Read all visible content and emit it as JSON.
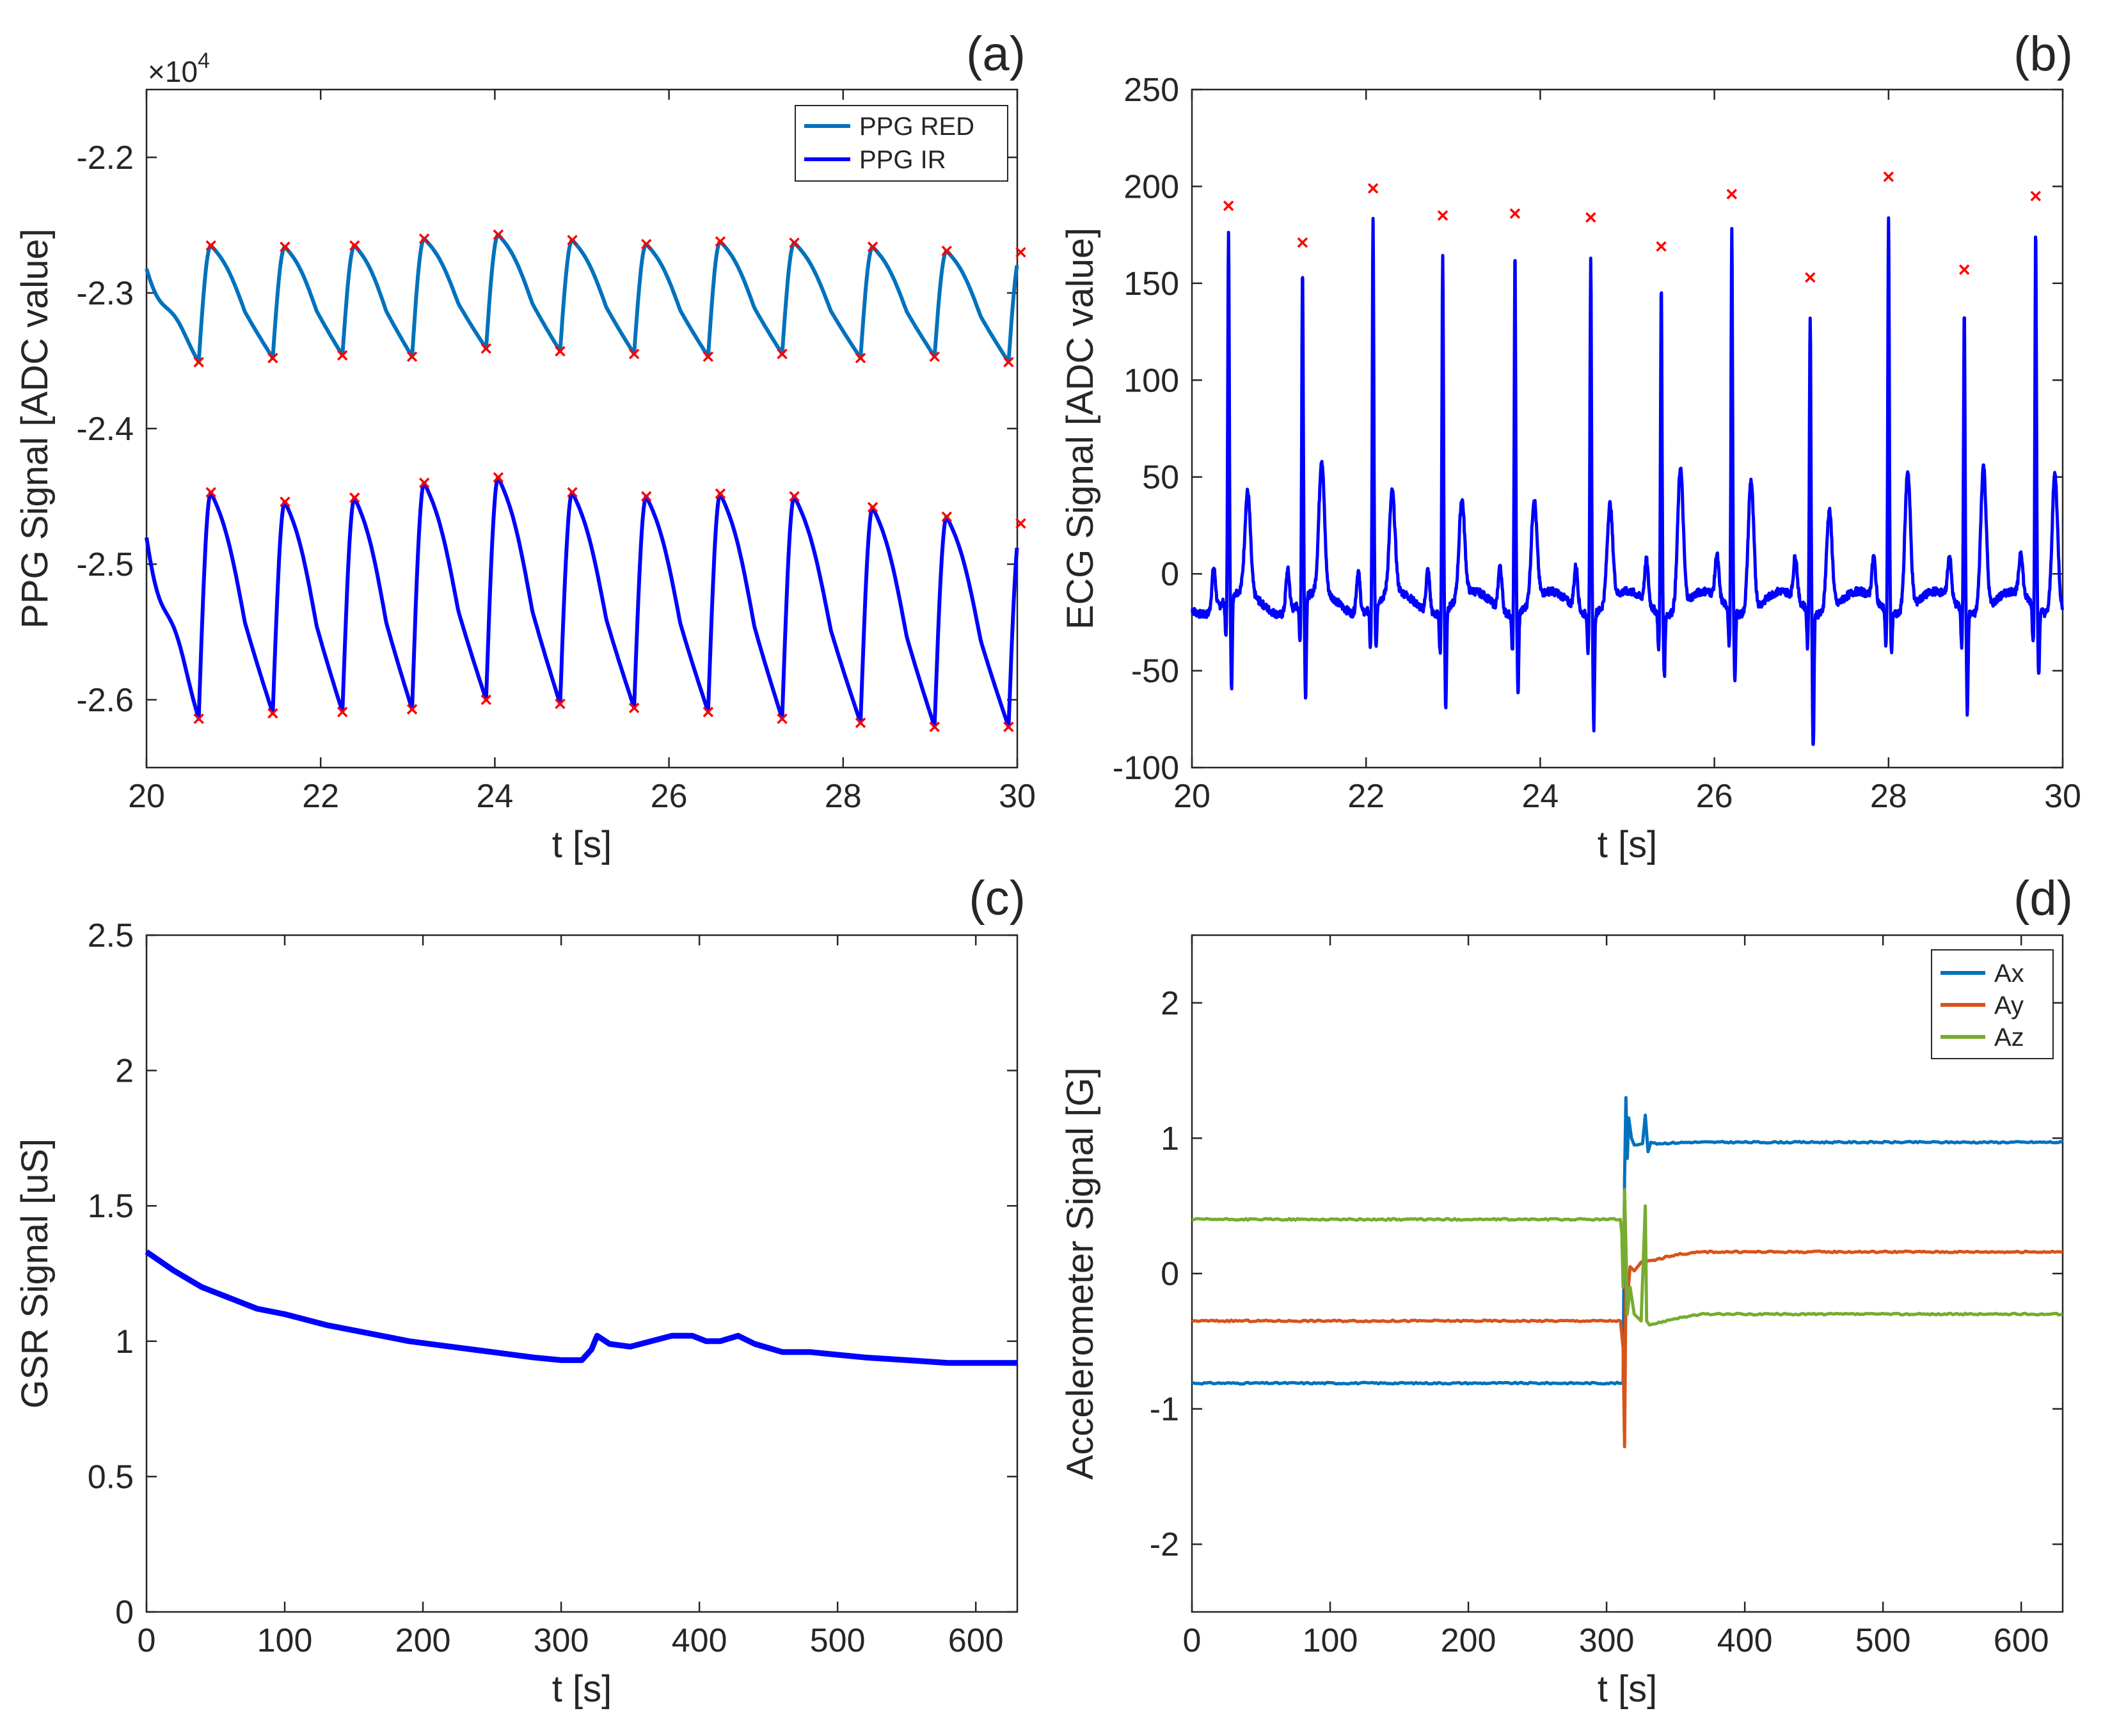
{
  "chart_data": [
    {
      "panel": "(a)",
      "type": "line",
      "title": "",
      "xlabel": "t [s]",
      "ylabel": "PPG Signal [ADC value]",
      "xlim": [
        20,
        30
      ],
      "ylim": [
        -26500,
        -21500
      ],
      "xticks": [
        "20",
        "22",
        "24",
        "26",
        "28",
        "30"
      ],
      "yticks": [
        "-2.2",
        "-2.3",
        "-2.4",
        "-2.5",
        "-2.6"
      ],
      "exponent_label": "×10",
      "exponent_power": "4",
      "legend": [
        "PPG RED",
        "PPG IR"
      ],
      "legend_position": "top-right",
      "series": [
        {
          "name": "PPG RED",
          "color": "#0072BD",
          "base": -23500,
          "amplitude": 870
        },
        {
          "name": "PPG IR",
          "color": "#0000FF",
          "base": -26130,
          "amplitude": 1640
        }
      ],
      "beat_onsets_s": [
        20.6,
        21.45,
        22.25,
        23.05,
        23.9,
        24.75,
        25.6,
        26.45,
        27.3,
        28.2,
        29.05,
        29.9
      ],
      "red_peaks": [
        -22650,
        -22660,
        -22650,
        -22600,
        -22570,
        -22610,
        -22640,
        -22620,
        -22630,
        -22660,
        -22690,
        -22700
      ],
      "red_troughs": [
        -23510,
        -23480,
        -23460,
        -23470,
        -23410,
        -23430,
        -23450,
        -23470,
        -23450,
        -23480,
        -23470,
        -23510
      ],
      "ir_peaks": [
        -24470,
        -24540,
        -24510,
        -24400,
        -24360,
        -24470,
        -24500,
        -24480,
        -24500,
        -24580,
        -24650,
        -24700
      ],
      "ir_troughs": [
        -26140,
        -26100,
        -26090,
        -26070,
        -26000,
        -26030,
        -26060,
        -26090,
        -26140,
        -26170,
        -26200,
        -26200
      ],
      "peak_marker_color": "#FF0000"
    },
    {
      "panel": "(b)",
      "type": "line",
      "xlabel": "t [s]",
      "ylabel": "ECG Signal [ADC value]",
      "xlim": [
        20,
        30
      ],
      "ylim": [
        -100,
        250
      ],
      "xticks": [
        "20",
        "22",
        "24",
        "26",
        "28",
        "30"
      ],
      "yticks": [
        "250",
        "200",
        "150",
        "100",
        "50",
        "0",
        "-50",
        "-100"
      ],
      "series": [
        {
          "name": "ECG",
          "color": "#0000FF"
        }
      ],
      "r_peak_times": [
        20.42,
        21.27,
        22.08,
        22.88,
        23.71,
        24.58,
        25.39,
        26.2,
        27.1,
        28.0,
        28.87,
        29.69
      ],
      "r_peak_values": [
        190,
        171,
        199,
        185,
        186,
        184,
        169,
        196,
        153,
        205,
        157,
        195
      ],
      "s_wave_values": [
        -57,
        -62,
        -32,
        -61,
        -52,
        -69,
        -42,
        -45,
        -85,
        -30,
        -62,
        -45
      ],
      "t_wave_values": [
        42,
        58,
        42,
        40,
        42,
        40,
        62,
        58,
        42,
        62,
        65,
        62
      ],
      "peak_marker_color": "#FF0000"
    },
    {
      "panel": "(c)",
      "type": "line",
      "xlabel": "t [s]",
      "ylabel": "GSR Signal [uS]",
      "xlim": [
        0,
        630
      ],
      "ylim": [
        0,
        2.5
      ],
      "xticks": [
        "0",
        "100",
        "200",
        "300",
        "400",
        "500",
        "600"
      ],
      "yticks": [
        "2.5",
        "2",
        "1.5",
        "1",
        "0.5",
        "0"
      ],
      "series": [
        {
          "name": "GSR",
          "color": "#0000FF",
          "x": [
            0,
            20,
            40,
            60,
            80,
            100,
            130,
            160,
            190,
            220,
            250,
            280,
            300,
            315,
            322,
            326,
            335,
            350,
            365,
            380,
            395,
            405,
            415,
            428,
            440,
            460,
            480,
            500,
            520,
            550,
            580,
            600,
            630
          ],
          "y": [
            1.33,
            1.26,
            1.2,
            1.16,
            1.12,
            1.1,
            1.06,
            1.03,
            1.0,
            0.98,
            0.96,
            0.94,
            0.93,
            0.93,
            0.97,
            1.02,
            0.99,
            0.98,
            1.0,
            1.02,
            1.02,
            1.0,
            1.0,
            1.02,
            0.99,
            0.96,
            0.96,
            0.95,
            0.94,
            0.93,
            0.92,
            0.92,
            0.92
          ]
        }
      ]
    },
    {
      "panel": "(d)",
      "type": "line",
      "xlabel": "t [s]",
      "ylabel": "Accelerometer Signal [G]",
      "xlim": [
        0,
        630
      ],
      "ylim": [
        -2.5,
        2.5
      ],
      "xticks": [
        "0",
        "100",
        "200",
        "300",
        "400",
        "500",
        "600"
      ],
      "yticks": [
        "2",
        "1",
        "0",
        "-1",
        "-2"
      ],
      "legend": [
        "Ax",
        "Ay",
        "Az"
      ],
      "legend_position": "top-right",
      "series": [
        {
          "name": "Ax",
          "color": "#0072BD",
          "x": [
            0,
            312,
            313,
            314,
            315,
            316,
            318,
            320,
            322,
            326,
            328,
            330,
            332,
            335,
            360,
            420,
            630
          ],
          "y": [
            -0.81,
            -0.81,
            0.7,
            1.3,
            0.85,
            1.15,
            1.0,
            0.95,
            0.95,
            0.96,
            1.17,
            0.9,
            0.97,
            0.96,
            0.97,
            0.97,
            0.97
          ]
        },
        {
          "name": "Ay",
          "color": "#D95319",
          "x": [
            0,
            310,
            312,
            313,
            314,
            315,
            317,
            320,
            325,
            335,
            350,
            370,
            420,
            630
          ],
          "y": [
            -0.35,
            -0.35,
            -0.55,
            -1.28,
            -0.1,
            -0.2,
            0.05,
            0.02,
            0.08,
            0.1,
            0.14,
            0.16,
            0.16,
            0.16
          ]
        },
        {
          "name": "Az",
          "color": "#77AC30",
          "x": [
            0,
            310,
            311,
            312,
            313,
            314,
            315,
            317,
            320,
            325,
            328,
            329,
            331,
            335,
            350,
            370,
            420,
            630
          ],
          "y": [
            0.4,
            0.4,
            0.3,
            -0.1,
            0.62,
            0.2,
            -0.3,
            -0.1,
            -0.3,
            -0.35,
            0.5,
            -0.35,
            -0.38,
            -0.37,
            -0.33,
            -0.3,
            -0.3,
            -0.3
          ]
        }
      ]
    }
  ]
}
